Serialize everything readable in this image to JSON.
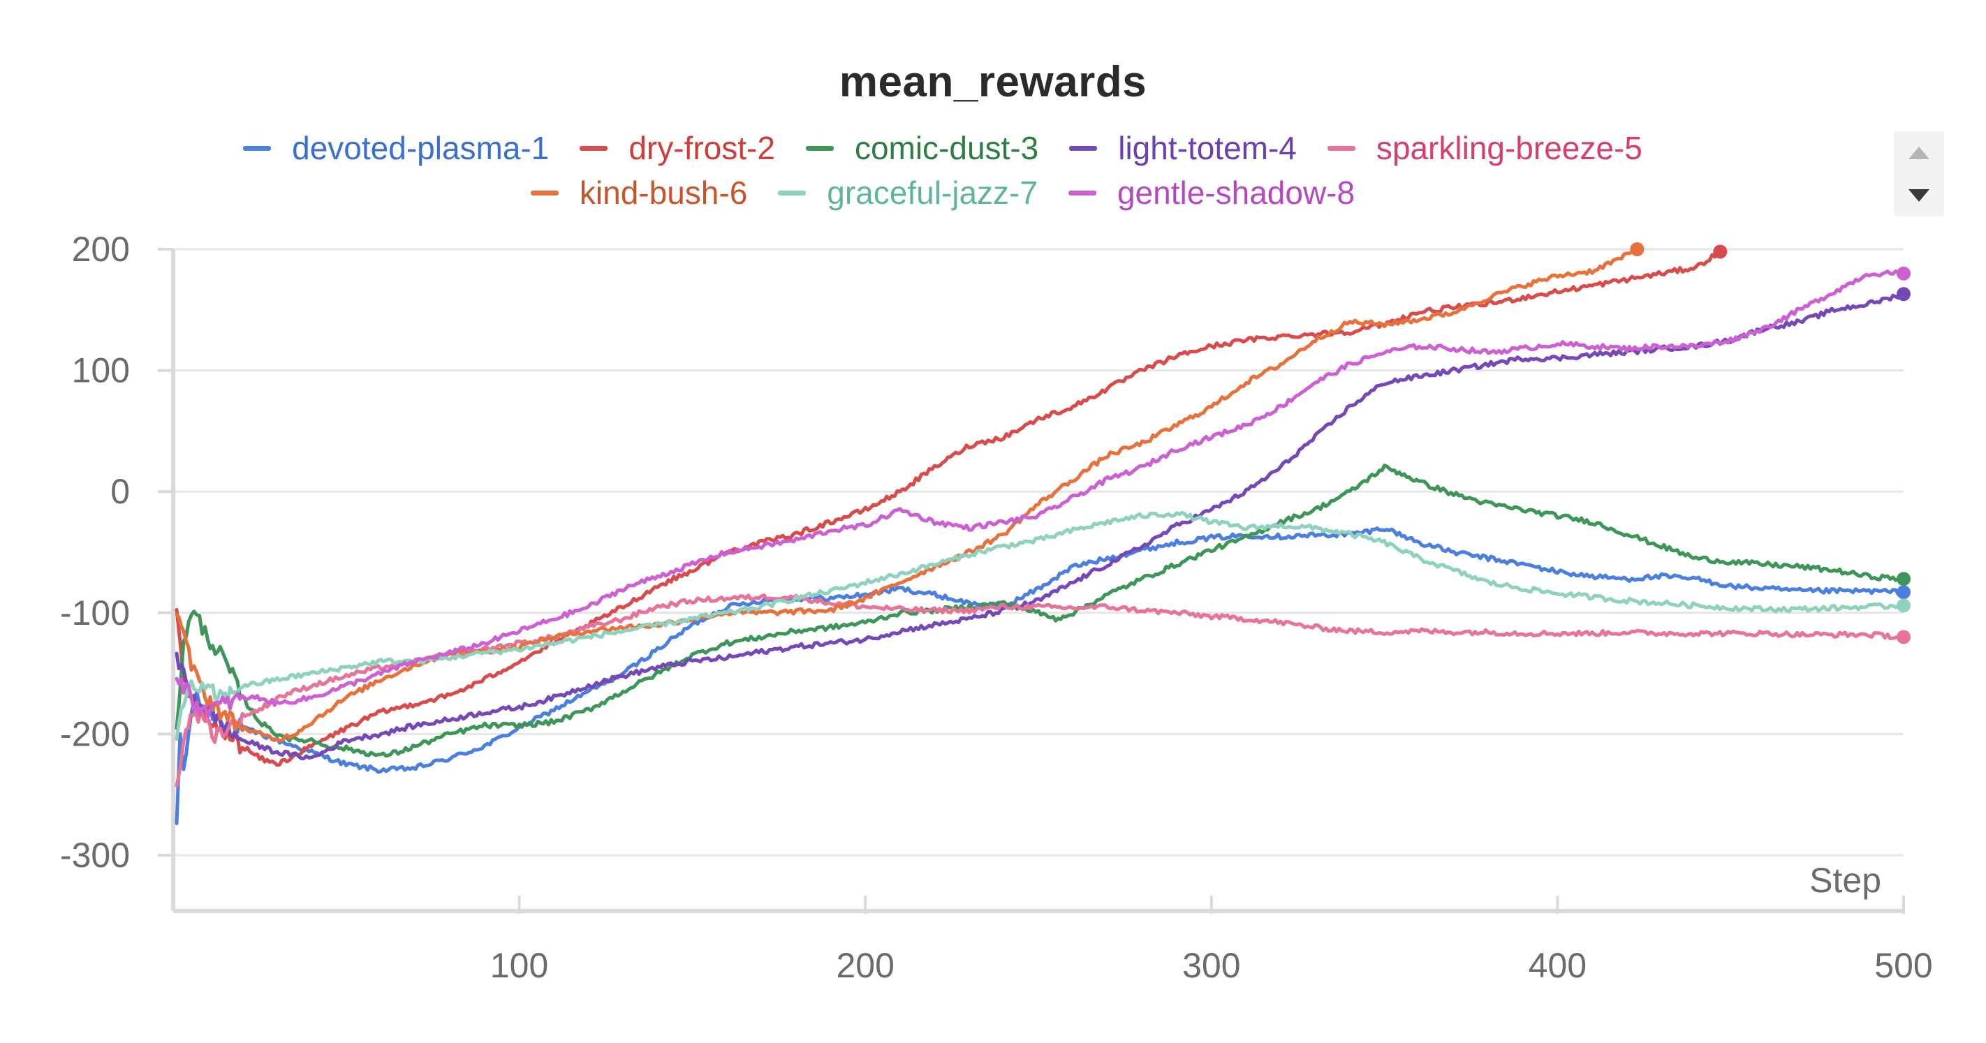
{
  "chart_data": {
    "type": "line",
    "title": "mean_rewards",
    "xlabel": "Step",
    "ylabel": "",
    "xlim": [
      0,
      500
    ],
    "ylim": [
      -340,
      200
    ],
    "x_ticks": [
      100,
      200,
      300,
      400,
      500
    ],
    "y_ticks": [
      200,
      100,
      0,
      -100,
      -200,
      -300
    ],
    "x_tick_labels": [
      "100",
      "200",
      "300",
      "400",
      "500"
    ],
    "y_tick_labels": [
      "200",
      "100",
      "0",
      "-100",
      "-200",
      "-300"
    ],
    "grid": true,
    "legend_position": "top",
    "series": [
      {
        "name": "devoted-plasma-1",
        "color": "#4a7fe0",
        "label_color": "#3a6fd0",
        "x": [
          1,
          2,
          3,
          6,
          10,
          15,
          20,
          30,
          40,
          50,
          60,
          70,
          80,
          90,
          100,
          110,
          120,
          130,
          140,
          150,
          160,
          170,
          180,
          190,
          200,
          210,
          220,
          230,
          240,
          250,
          260,
          270,
          280,
          290,
          300,
          310,
          320,
          330,
          340,
          345,
          350,
          355,
          360,
          370,
          380,
          390,
          400,
          410,
          420,
          430,
          440,
          450,
          460,
          470,
          480,
          490,
          500
        ],
        "y": [
          -280,
          -200,
          -230,
          -170,
          -180,
          -190,
          -195,
          -205,
          -215,
          -225,
          -230,
          -228,
          -220,
          -210,
          -195,
          -180,
          -165,
          -150,
          -130,
          -110,
          -95,
          -90,
          -88,
          -88,
          -85,
          -80,
          -85,
          -92,
          -95,
          -80,
          -62,
          -55,
          -48,
          -42,
          -38,
          -36,
          -37,
          -36,
          -35,
          -33,
          -30,
          -36,
          -42,
          -50,
          -55,
          -60,
          -66,
          -70,
          -72,
          -70,
          -72,
          -78,
          -80,
          -82,
          -82,
          -82,
          -83
        ],
        "end_marker": true
      },
      {
        "name": "dry-frost-2",
        "color": "#d94a4a",
        "label_color": "#d03b3b",
        "x": [
          1,
          3,
          6,
          10,
          15,
          20,
          25,
          30,
          35,
          40,
          50,
          60,
          70,
          80,
          90,
          100,
          110,
          120,
          130,
          140,
          150,
          160,
          170,
          180,
          190,
          200,
          210,
          220,
          230,
          240,
          250,
          260,
          270,
          280,
          290,
          300,
          310,
          320,
          330,
          340,
          350,
          360,
          370,
          380,
          390,
          400,
          410,
          420,
          430,
          440,
          447
        ],
        "y": [
          -100,
          -150,
          -180,
          -190,
          -200,
          -210,
          -220,
          -225,
          -218,
          -210,
          -195,
          -182,
          -175,
          -168,
          -155,
          -140,
          -125,
          -110,
          -95,
          -78,
          -65,
          -50,
          -42,
          -35,
          -25,
          -15,
          0,
          20,
          38,
          45,
          60,
          70,
          85,
          100,
          112,
          120,
          125,
          128,
          130,
          132,
          138,
          148,
          152,
          155,
          160,
          165,
          170,
          175,
          180,
          185,
          198
        ],
        "end_marker": true
      },
      {
        "name": "comic-dust-3",
        "color": "#3d9658",
        "label_color": "#2e7d45",
        "x": [
          1,
          3,
          6,
          10,
          15,
          20,
          25,
          30,
          35,
          40,
          45,
          50,
          55,
          60,
          65,
          70,
          80,
          90,
          100,
          110,
          120,
          130,
          140,
          150,
          160,
          170,
          180,
          190,
          200,
          210,
          220,
          230,
          240,
          250,
          255,
          260,
          270,
          280,
          290,
          300,
          310,
          320,
          330,
          340,
          345,
          350,
          355,
          360,
          370,
          380,
          390,
          400,
          410,
          420,
          430,
          440,
          450,
          460,
          470,
          480,
          490,
          500
        ],
        "y": [
          -200,
          -120,
          -100,
          -120,
          -140,
          -170,
          -190,
          -200,
          -205,
          -205,
          -210,
          -212,
          -215,
          -218,
          -215,
          -210,
          -200,
          -193,
          -193,
          -190,
          -180,
          -165,
          -150,
          -135,
          -125,
          -120,
          -115,
          -112,
          -108,
          -100,
          -98,
          -95,
          -92,
          -100,
          -105,
          -100,
          -85,
          -72,
          -60,
          -48,
          -38,
          -25,
          -15,
          0,
          10,
          20,
          15,
          8,
          -2,
          -10,
          -15,
          -20,
          -25,
          -35,
          -45,
          -55,
          -58,
          -60,
          -62,
          -65,
          -70,
          -72
        ],
        "end_marker": true
      },
      {
        "name": "light-totem-4",
        "color": "#7548b8",
        "label_color": "#6a3fb0",
        "x": [
          1,
          3,
          6,
          10,
          15,
          20,
          25,
          30,
          40,
          50,
          60,
          70,
          80,
          90,
          100,
          110,
          120,
          130,
          140,
          150,
          160,
          170,
          180,
          190,
          200,
          210,
          220,
          230,
          240,
          250,
          260,
          270,
          280,
          290,
          300,
          310,
          320,
          330,
          340,
          350,
          360,
          370,
          380,
          390,
          400,
          410,
          420,
          430,
          440,
          450,
          460,
          470,
          480,
          490,
          500
        ],
        "y": [
          -140,
          -150,
          -170,
          -180,
          -195,
          -205,
          -210,
          -215,
          -220,
          -205,
          -200,
          -193,
          -188,
          -182,
          -178,
          -170,
          -160,
          -152,
          -145,
          -140,
          -137,
          -132,
          -128,
          -125,
          -122,
          -115,
          -110,
          -105,
          -98,
          -90,
          -75,
          -60,
          -45,
          -28,
          -15,
          0,
          20,
          45,
          70,
          90,
          95,
          100,
          105,
          110,
          110,
          113,
          115,
          118,
          120,
          125,
          135,
          140,
          150,
          155,
          163
        ],
        "end_marker": true
      },
      {
        "name": "sparkling-breeze-5",
        "color": "#e87398",
        "label_color": "#d63f6d",
        "x": [
          1,
          2,
          3,
          5,
          8,
          12,
          16,
          20,
          25,
          30,
          40,
          50,
          60,
          70,
          80,
          90,
          100,
          110,
          120,
          130,
          140,
          150,
          160,
          170,
          180,
          190,
          200,
          210,
          220,
          230,
          240,
          250,
          260,
          270,
          280,
          290,
          300,
          310,
          320,
          330,
          340,
          350,
          360,
          370,
          380,
          390,
          400,
          410,
          420,
          430,
          440,
          450,
          460,
          470,
          480,
          490,
          500
        ],
        "y": [
          -240,
          -230,
          -210,
          -180,
          -185,
          -200,
          -195,
          -185,
          -180,
          -170,
          -160,
          -152,
          -145,
          -140,
          -135,
          -130,
          -125,
          -120,
          -112,
          -105,
          -95,
          -90,
          -88,
          -87,
          -87,
          -92,
          -95,
          -97,
          -98,
          -98,
          -95,
          -95,
          -96,
          -95,
          -98,
          -100,
          -103,
          -105,
          -108,
          -112,
          -115,
          -116,
          -115,
          -116,
          -116,
          -117,
          -117,
          -117,
          -116,
          -117,
          -117,
          -117,
          -117,
          -118,
          -118,
          -118,
          -120
        ],
        "end_marker": true
      },
      {
        "name": "kind-bush-6",
        "color": "#e8713b",
        "label_color": "#c8552a",
        "x": [
          1,
          3,
          6,
          10,
          15,
          20,
          25,
          30,
          35,
          40,
          50,
          60,
          70,
          80,
          90,
          100,
          110,
          120,
          130,
          140,
          150,
          160,
          170,
          180,
          190,
          200,
          210,
          220,
          230,
          240,
          250,
          260,
          270,
          280,
          290,
          300,
          310,
          320,
          330,
          340,
          350,
          360,
          370,
          380,
          390,
          400,
          410,
          420,
          423
        ],
        "y": [
          -100,
          -120,
          -150,
          -170,
          -185,
          -195,
          -200,
          -205,
          -200,
          -190,
          -170,
          -155,
          -143,
          -133,
          -132,
          -128,
          -120,
          -115,
          -112,
          -110,
          -105,
          -100,
          -100,
          -99,
          -98,
          -88,
          -75,
          -62,
          -50,
          -35,
          -10,
          10,
          30,
          40,
          55,
          70,
          90,
          105,
          125,
          140,
          138,
          142,
          148,
          160,
          170,
          178,
          182,
          195,
          200
        ],
        "end_marker": true
      },
      {
        "name": "graceful-jazz-7",
        "color": "#8fd1bf",
        "label_color": "#5fb49c",
        "x": [
          1,
          3,
          6,
          10,
          15,
          20,
          25,
          30,
          40,
          50,
          60,
          70,
          80,
          90,
          100,
          110,
          120,
          130,
          140,
          150,
          160,
          170,
          180,
          190,
          200,
          210,
          220,
          230,
          240,
          250,
          260,
          270,
          280,
          290,
          300,
          310,
          320,
          330,
          340,
          350,
          360,
          370,
          380,
          390,
          400,
          410,
          420,
          430,
          440,
          450,
          460,
          470,
          480,
          490,
          500
        ],
        "y": [
          -200,
          -170,
          -160,
          -165,
          -170,
          -160,
          -158,
          -155,
          -150,
          -145,
          -140,
          -140,
          -137,
          -133,
          -130,
          -125,
          -120,
          -115,
          -110,
          -105,
          -100,
          -95,
          -88,
          -82,
          -75,
          -68,
          -60,
          -52,
          -45,
          -40,
          -32,
          -25,
          -20,
          -18,
          -25,
          -30,
          -28,
          -30,
          -35,
          -42,
          -55,
          -65,
          -75,
          -80,
          -84,
          -87,
          -90,
          -92,
          -94,
          -96,
          -97,
          -97,
          -96,
          -95,
          -94
        ],
        "end_marker": true
      },
      {
        "name": "gentle-shadow-8",
        "color": "#cc5fd1",
        "label_color": "#b548c0",
        "x": [
          1,
          3,
          6,
          10,
          15,
          20,
          25,
          30,
          40,
          50,
          60,
          70,
          80,
          90,
          100,
          110,
          120,
          130,
          140,
          150,
          160,
          170,
          180,
          190,
          200,
          210,
          220,
          230,
          240,
          250,
          260,
          270,
          280,
          290,
          300,
          310,
          320,
          330,
          340,
          350,
          360,
          370,
          380,
          390,
          400,
          410,
          420,
          430,
          440,
          450,
          460,
          470,
          480,
          490,
          500
        ],
        "y": [
          -150,
          -160,
          -175,
          -180,
          -175,
          -170,
          -170,
          -175,
          -170,
          -160,
          -150,
          -140,
          -133,
          -125,
          -115,
          -105,
          -95,
          -80,
          -70,
          -60,
          -50,
          -45,
          -40,
          -32,
          -28,
          -15,
          -25,
          -30,
          -25,
          -20,
          -5,
          10,
          20,
          35,
          45,
          55,
          70,
          90,
          105,
          115,
          120,
          118,
          115,
          118,
          122,
          120,
          118,
          120,
          120,
          125,
          135,
          150,
          165,
          180,
          180
        ],
        "end_marker": true
      }
    ]
  },
  "legend": {
    "row1": [
      "devoted-plasma-1",
      "dry-frost-2",
      "comic-dust-3",
      "light-totem-4",
      "sparkling-breeze-5"
    ],
    "row2": [
      "kind-bush-6",
      "graceful-jazz-7",
      "gentle-shadow-8"
    ]
  },
  "colors": {
    "grid": "#e6e6e6",
    "axis": "#d9d9d9",
    "tick_text": "#6b6b6b",
    "title": "#2b2b2b"
  }
}
